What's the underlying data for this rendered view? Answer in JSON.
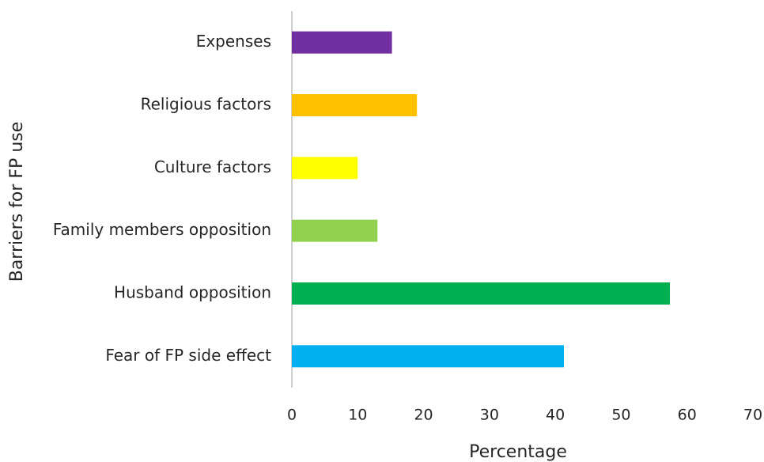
{
  "chart_data": {
    "type": "hbar",
    "xlabel": "Percentage",
    "ylabel": "Barriers for FP use",
    "categories": [
      "Expenses",
      "Religious factors",
      "Culture factors",
      "Family members opposition",
      "Husband opposition",
      "Fear of FP side effect"
    ],
    "values": [
      15.2,
      19,
      10,
      13,
      57.4,
      41.3
    ],
    "colors": [
      "#7030a0",
      "#ffc000",
      "#ffff00",
      "#92d050",
      "#00b050",
      "#00b0f0"
    ],
    "xlim": [
      0,
      70
    ],
    "xticks": [
      0,
      10,
      20,
      30,
      40,
      50,
      60,
      70
    ],
    "grid": false
  }
}
